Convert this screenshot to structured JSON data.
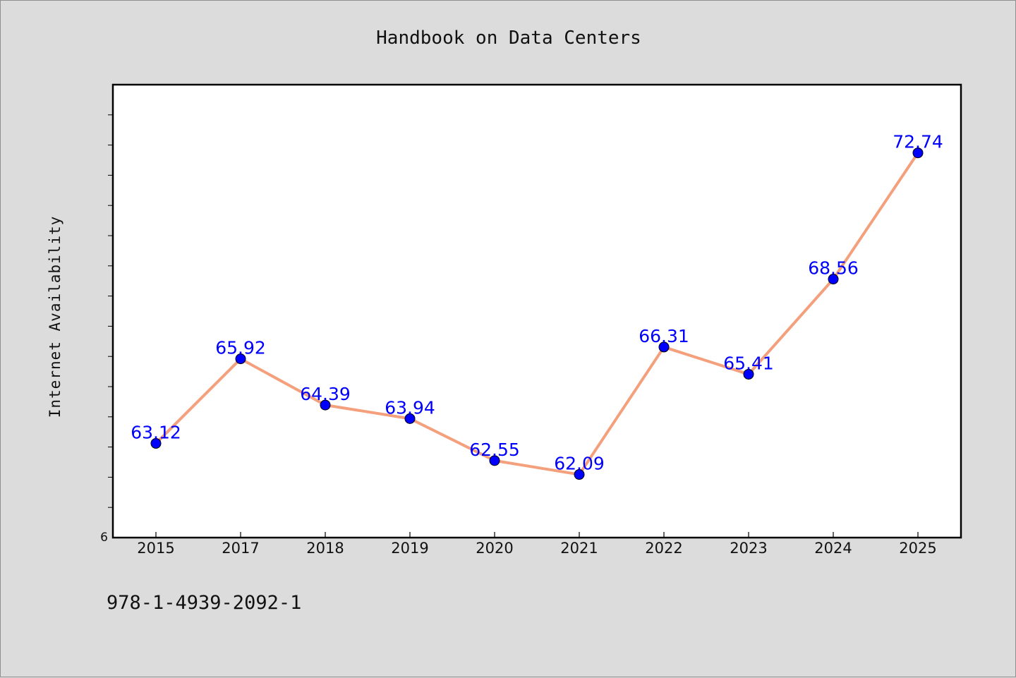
{
  "chart_data": {
    "type": "line",
    "title": "Handbook on Data Centers",
    "xlabel": "",
    "ylabel": "Internet Availability",
    "categories": [
      "2015",
      "2017",
      "2018",
      "2019",
      "2020",
      "2021",
      "2022",
      "2023",
      "2024",
      "2025"
    ],
    "series": [
      {
        "values": [
          63.12,
          65.92,
          64.39,
          63.94,
          62.55,
          62.09,
          66.31,
          65.41,
          68.56,
          72.74
        ]
      }
    ],
    "data_labels": [
      "63.12",
      "65.92",
      "64.39",
      "63.94",
      "62.55",
      "62.09",
      "66.31",
      "65.41",
      "68.56",
      "72.74"
    ],
    "ylim": [
      60,
      75
    ],
    "y_tick_labels": [
      "6"
    ],
    "grid": false,
    "legend": "none",
    "colors": {
      "line": "#f4a07c",
      "marker": "#0000ff",
      "data_label": "#0000ff"
    }
  },
  "footer": {
    "isbn": "978-1-4939-2092-1"
  }
}
